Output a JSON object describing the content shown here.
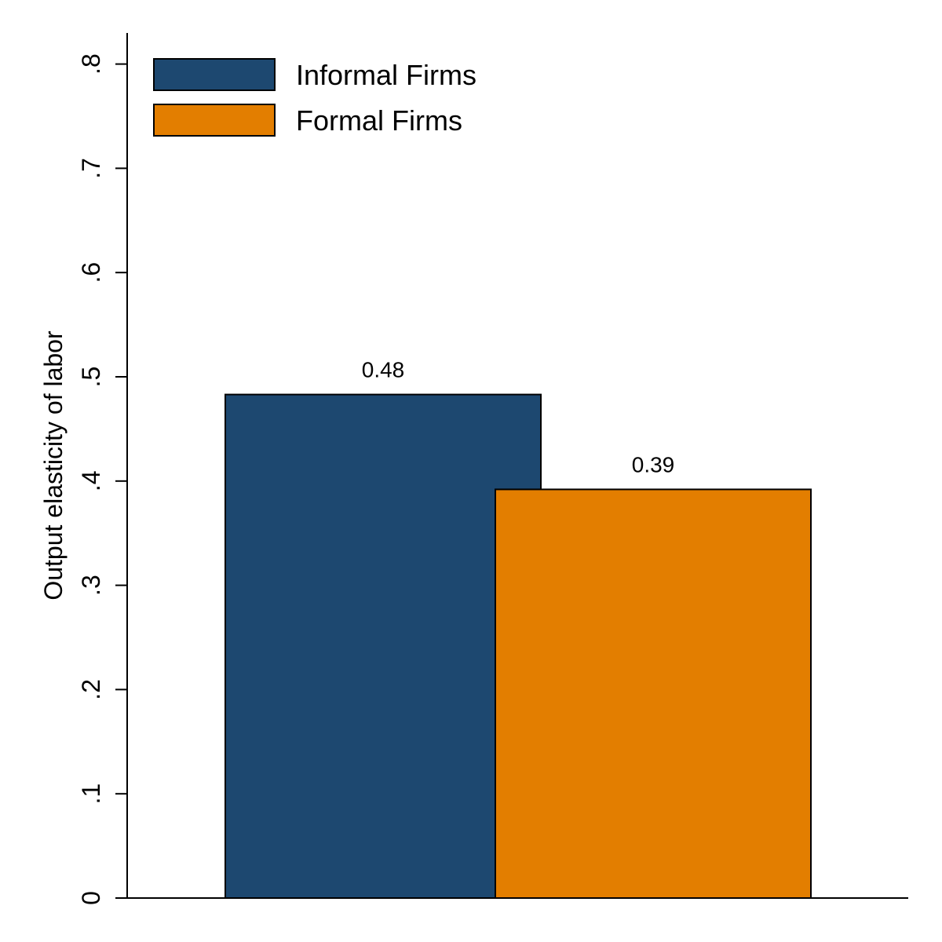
{
  "chart_data": {
    "type": "bar",
    "title": "",
    "xlabel": "",
    "ylabel": "Output elasticity of labor",
    "ylim": [
      0,
      0.83
    ],
    "yticks": [
      0,
      0.1,
      0.2,
      0.3,
      0.4,
      0.5,
      0.6,
      0.7,
      0.8
    ],
    "ytick_labels": [
      "0",
      ".1",
      ".2",
      ".3",
      ".4",
      ".5",
      ".6",
      ".7",
      ".8"
    ],
    "grid": false,
    "legend_position": "top-left",
    "series": [
      {
        "name": "Informal Firms",
        "values": [
          0.483
        ],
        "data_label": "0.48",
        "color": "#1d4870"
      },
      {
        "name": "Formal Firms",
        "values": [
          0.392
        ],
        "data_label": "0.39",
        "color": "#e37e00"
      }
    ]
  }
}
